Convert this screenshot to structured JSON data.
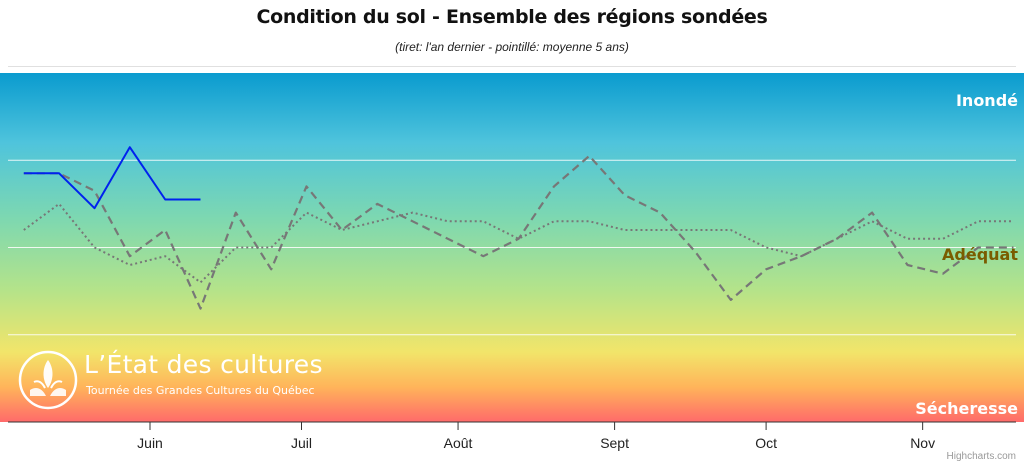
{
  "chart_data": {
    "type": "line",
    "title": "Condition du sol - Ensemble des régions sondées",
    "subtitle": "(tiret: l'an dernier - pointillé: moyenne 5 ans)",
    "x_ticks": [
      "Juin",
      "Juil",
      "Août",
      "Sept",
      "Oct",
      "Nov"
    ],
    "x_tick_dates": [
      "06-01",
      "07-01",
      "08-01",
      "09-01",
      "10-01",
      "11-01"
    ],
    "bands": {
      "top": "Inondé",
      "middle": "Adéquat",
      "bottom": "Sécheresse"
    },
    "ylim": [
      1,
      5
    ],
    "grid": "horizontal",
    "series": [
      {
        "style": "solid",
        "color": "#0022ee",
        "x": [
          "05-07",
          "05-14",
          "05-21",
          "05-28",
          "06-04",
          "06-11"
        ],
        "values": [
          3.85,
          3.85,
          3.45,
          4.15,
          3.55,
          3.55
        ]
      },
      {
        "style": "dashed",
        "color": "#777777",
        "x": [
          "05-07",
          "05-14",
          "05-21",
          "05-28",
          "06-04",
          "06-11",
          "06-18",
          "06-25",
          "07-02",
          "07-09",
          "07-16",
          "07-23",
          "07-30",
          "08-06",
          "08-13",
          "08-20",
          "08-27",
          "09-03",
          "09-10",
          "09-17",
          "09-24",
          "10-01",
          "10-08",
          "10-15",
          "10-22",
          "10-29",
          "11-05",
          "11-12",
          "11-19"
        ],
        "values": [
          3.85,
          3.85,
          3.65,
          2.9,
          3.2,
          2.3,
          3.4,
          2.75,
          3.7,
          3.2,
          3.5,
          3.3,
          3.1,
          2.9,
          3.1,
          3.7,
          4.05,
          3.6,
          3.4,
          2.95,
          2.4,
          2.75,
          2.9,
          3.1,
          3.4,
          2.8,
          2.7,
          3.0,
          3.0
        ]
      },
      {
        "style": "dotted",
        "color": "#777777",
        "x": [
          "05-07",
          "05-14",
          "05-21",
          "05-28",
          "06-04",
          "06-11",
          "06-18",
          "06-25",
          "07-02",
          "07-09",
          "07-16",
          "07-23",
          "07-30",
          "08-06",
          "08-13",
          "08-20",
          "08-27",
          "09-03",
          "09-10",
          "09-17",
          "09-24",
          "10-01",
          "10-08",
          "10-15",
          "10-22",
          "10-29",
          "11-05",
          "11-12",
          "11-19"
        ],
        "values": [
          3.2,
          3.5,
          3.0,
          2.8,
          2.9,
          2.6,
          3.0,
          3.0,
          3.4,
          3.2,
          3.3,
          3.4,
          3.3,
          3.3,
          3.1,
          3.3,
          3.3,
          3.2,
          3.2,
          3.2,
          3.2,
          3.0,
          2.9,
          3.1,
          3.3,
          3.1,
          3.1,
          3.3,
          3.3
        ]
      }
    ]
  },
  "watermark": {
    "title": "L’État des cultures",
    "subtitle": "Tournée des Grandes Cultures du Québec"
  },
  "credits": "Highcharts.com",
  "colors": {
    "band_top": "#0ea0d0",
    "band_mid": "#a8e08c",
    "band_bottom": "#ff6b6b",
    "inonde_label": "#ffffff",
    "adequat_label": "#7a5c00",
    "secheresse_label": "#ffffff"
  }
}
